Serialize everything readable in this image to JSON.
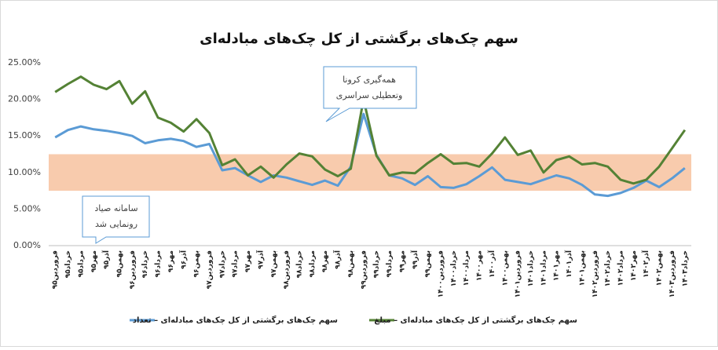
{
  "chart_data": {
    "type": "line",
    "title": "سهم چک‌های برگشتی از کل چک‌های مبادله‌ای",
    "categories": [
      "فروردین۹۵",
      "خرداد۹۵",
      "مرداد۹۵",
      "مهر۹۵",
      "آذر۹۵",
      "بهمن۹۵",
      "فروردین۹۶",
      "خرداد۹۶",
      "مرداد۹۶",
      "مهر۹۶",
      "آذر۹۶",
      "بهمن۹۶",
      "فروردین۹۷",
      "خرداد۹۷",
      "مرداد۹۷",
      "مهر۹۷",
      "آذر۹۷",
      "بهمن۹۷",
      "فروردین۹۸",
      "خرداد۹۸",
      "مرداد۹۸",
      "مهر۹۸",
      "آذر۹۸",
      "بهمن۹۸",
      "فروردین۹۹",
      "خرداد۹۹",
      "مرداد۹۹",
      "مهر۹۹",
      "آذر۹۹",
      "بهمن۹۹",
      "فروردین۱۴۰۰",
      "خرداد۱۴۰۰",
      "مرداد۱۴۰۰",
      "مهر۱۴۰۰",
      "آذر۱۴۰۰",
      "بهمن۱۴۰۰",
      "فروردین۱۴۰۱",
      "خرداد۱۴۰۱",
      "مرداد۱۴۰۱",
      "مهر۱۴۰۱",
      "آذر۱۴۰۱",
      "بهمن۱۴۰۱",
      "فروردین۱۴۰۲",
      "خرداد۱۴۰۲",
      "مرداد۱۴۰۲",
      "مهر۱۴۰۲",
      "آذر۱۴۰۲",
      "بهمن۱۴۰۲",
      "فروردین۱۴۰۳",
      "خرداد۱۴۰۳"
    ],
    "series": [
      {
        "name": "سهم چک‌های برگشتی از کل چک‌های مبادله‌ای – تعداد",
        "color": "#5b9bd5",
        "values": [
          14.8,
          15.8,
          16.3,
          15.9,
          15.7,
          15.4,
          15.0,
          14.0,
          14.4,
          14.6,
          14.3,
          13.5,
          13.9,
          10.3,
          10.6,
          9.6,
          8.7,
          9.6,
          9.3,
          8.8,
          8.3,
          8.9,
          8.2,
          10.8,
          18.0,
          12.4,
          9.6,
          9.2,
          8.3,
          9.5,
          8.0,
          7.9,
          8.4,
          9.5,
          10.7,
          9.0,
          8.7,
          8.4,
          9.0,
          9.6,
          9.2,
          8.3,
          7.0,
          6.8,
          7.2,
          7.9,
          8.9,
          8.0,
          9.2,
          10.6
        ]
      },
      {
        "name": "سهم چک‌های برگشتی از کل چک‌های مبادله‌ای – مبلغ",
        "color": "#548235",
        "values": [
          21.0,
          22.1,
          23.1,
          22.0,
          21.4,
          22.5,
          19.4,
          21.1,
          17.5,
          16.8,
          15.6,
          17.3,
          15.4,
          11.0,
          11.8,
          9.6,
          10.8,
          9.3,
          11.1,
          12.6,
          12.2,
          10.4,
          9.5,
          10.5,
          20.0,
          12.3,
          9.6,
          10.0,
          9.9,
          11.3,
          12.5,
          11.2,
          11.3,
          10.8,
          12.6,
          14.8,
          12.4,
          13.0,
          10.0,
          11.7,
          12.2,
          11.1,
          11.3,
          10.8,
          9.0,
          8.5,
          9.0,
          10.8,
          13.3,
          15.8
        ]
      }
    ],
    "band": [
      7.5,
      12.5
    ],
    "band_color": "#f8cbad",
    "ylim": [
      0,
      25
    ],
    "yticks": [
      {
        "value": 0,
        "label": "0.00%"
      },
      {
        "value": 5,
        "label": "5.00%"
      },
      {
        "value": 10,
        "label": "10.00%"
      },
      {
        "value": 15,
        "label": "15.00%"
      },
      {
        "value": 20,
        "label": "20.00%"
      },
      {
        "value": 25,
        "label": "25.00%"
      }
    ],
    "annotations": [
      [
        "همه‌گیری کرونا",
        "وتعطیلی سراسری"
      ],
      [
        "سامانه صیاد",
        "رونمایی شد"
      ]
    ],
    "legend": "bottom"
  }
}
